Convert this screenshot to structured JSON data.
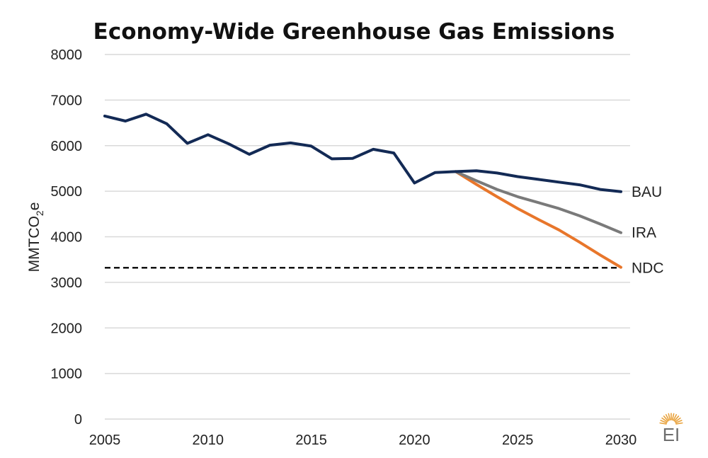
{
  "chart_data": {
    "type": "line",
    "title": "Economy-Wide Greenhouse Gas Emissions",
    "ylabel": "MMTCO2e",
    "ylabel_parts": {
      "pre": "MMTCO",
      "sub": "2",
      "post": "e"
    },
    "xlabel": "",
    "ylim": [
      0,
      8000
    ],
    "xlim": [
      2005,
      2030
    ],
    "yticks": [
      0,
      1000,
      2000,
      3000,
      4000,
      5000,
      6000,
      7000,
      8000
    ],
    "xticks": [
      2005,
      2010,
      2015,
      2020,
      2025,
      2030
    ],
    "grid": true,
    "series": [
      {
        "name": "BAU",
        "color": "#132a55",
        "style": "solid",
        "x": [
          2005,
          2006,
          2007,
          2008,
          2009,
          2010,
          2011,
          2012,
          2013,
          2014,
          2015,
          2016,
          2017,
          2018,
          2019,
          2020,
          2021,
          2022,
          2023,
          2024,
          2025,
          2026,
          2027,
          2028,
          2029,
          2030
        ],
        "y": [
          6650,
          6540,
          6690,
          6480,
          6050,
          6240,
          6040,
          5810,
          6010,
          6060,
          5990,
          5710,
          5720,
          5920,
          5840,
          5180,
          5410,
          5430,
          5450,
          5400,
          5320,
          5260,
          5200,
          5140,
          5040,
          4990
        ]
      },
      {
        "name": "IRA",
        "color": "#7a7a7a",
        "style": "solid",
        "x": [
          2022,
          2023,
          2024,
          2025,
          2026,
          2027,
          2028,
          2029,
          2030
        ],
        "y": [
          5430,
          5230,
          5040,
          4880,
          4750,
          4620,
          4460,
          4280,
          4090
        ]
      },
      {
        "name": "NDC",
        "color": "#e8762b",
        "style": "solid",
        "x": [
          2022,
          2023,
          2024,
          2025,
          2026,
          2027,
          2028,
          2029,
          2030
        ],
        "y": [
          5430,
          5150,
          4880,
          4620,
          4380,
          4150,
          3880,
          3600,
          3330
        ]
      },
      {
        "name": "NDC-target",
        "color": "#111111",
        "style": "dashed",
        "x": [
          2005,
          2030
        ],
        "y": [
          3320,
          3320
        ]
      }
    ],
    "series_labels": [
      {
        "text": "BAU",
        "y": 4990
      },
      {
        "text": "IRA",
        "y": 4090
      },
      {
        "text": "NDC",
        "y": 3320
      }
    ]
  },
  "logo": {
    "text": "EI",
    "accent_color": "#e9a23b"
  }
}
